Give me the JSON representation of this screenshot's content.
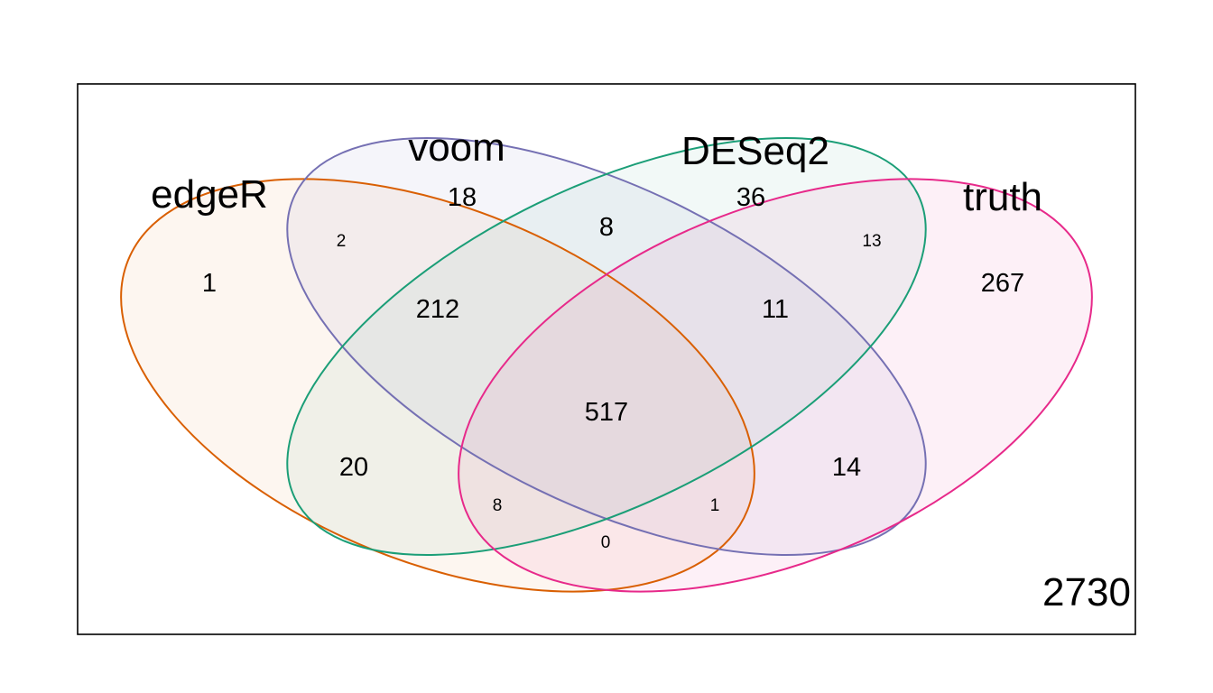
{
  "diagram": {
    "type": "venn",
    "sets": [
      {
        "key": "edgeR",
        "label": "edgeR",
        "color": "#D95F02"
      },
      {
        "key": "voom",
        "label": "voom",
        "color": "#7570B3"
      },
      {
        "key": "DESeq2",
        "label": "DESeq2",
        "color": "#1B9E77"
      },
      {
        "key": "truth",
        "label": "truth",
        "color": "#E7298A"
      }
    ],
    "regions": [
      {
        "sets": [
          "edgeR"
        ],
        "count": "1"
      },
      {
        "sets": [
          "voom"
        ],
        "count": "18"
      },
      {
        "sets": [
          "DESeq2"
        ],
        "count": "36"
      },
      {
        "sets": [
          "truth"
        ],
        "count": "267"
      },
      {
        "sets": [
          "edgeR",
          "voom"
        ],
        "count": "2"
      },
      {
        "sets": [
          "voom",
          "DESeq2"
        ],
        "count": "8"
      },
      {
        "sets": [
          "DESeq2",
          "truth"
        ],
        "count": "13"
      },
      {
        "sets": [
          "edgeR",
          "voom",
          "DESeq2"
        ],
        "count": "212"
      },
      {
        "sets": [
          "voom",
          "DESeq2",
          "truth"
        ],
        "count": "11"
      },
      {
        "sets": [
          "edgeR",
          "voom",
          "DESeq2",
          "truth"
        ],
        "count": "517"
      },
      {
        "sets": [
          "edgeR",
          "DESeq2"
        ],
        "count": "20"
      },
      {
        "sets": [
          "voom",
          "truth"
        ],
        "count": "14"
      },
      {
        "sets": [
          "edgeR",
          "DESeq2",
          "truth"
        ],
        "count": "8"
      },
      {
        "sets": [
          "edgeR",
          "voom",
          "truth"
        ],
        "count": "1"
      },
      {
        "sets": [
          "edgeR",
          "truth"
        ],
        "count": "0"
      }
    ],
    "outside_count": "2730"
  }
}
